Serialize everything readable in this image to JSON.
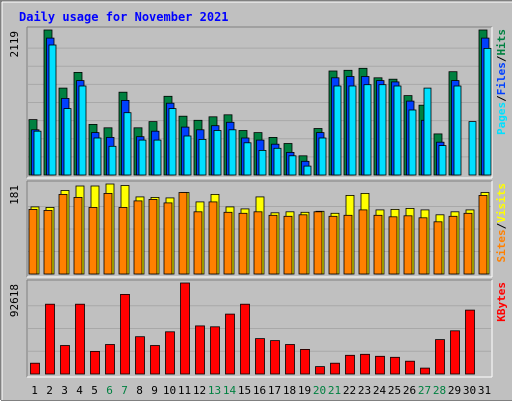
{
  "chart_data": {
    "type": "bar",
    "title": "Daily usage for November 2021",
    "colors": {
      "background": "#c0c0c0",
      "hits": "#008040",
      "files": "#0040ff",
      "pages": "#00e0ff",
      "visits": "#ffff00",
      "sites": "#ff8000",
      "kbytes": "#ff0000",
      "title": "#0000ff",
      "weekend_day": "#008040"
    },
    "categories": [
      "1",
      "2",
      "3",
      "4",
      "5",
      "6",
      "7",
      "8",
      "9",
      "10",
      "11",
      "12",
      "13",
      "14",
      "15",
      "16",
      "17",
      "18",
      "19",
      "20",
      "21",
      "22",
      "23",
      "24",
      "25",
      "26",
      "27",
      "28",
      "29",
      "30",
      "31"
    ],
    "weekend_days": [
      "6",
      "7",
      "13",
      "14",
      "20",
      "21",
      "27",
      "28"
    ],
    "panels": [
      {
        "name": "hits-files-pages",
        "max_label": "2119",
        "ymax": 2119,
        "legend": [
          {
            "text": "Pages",
            "color": "#00e0ff"
          },
          {
            "text": "/",
            "color": "#000000"
          },
          {
            "text": "Files",
            "color": "#0040ff"
          },
          {
            "text": "/",
            "color": "#000000"
          },
          {
            "text": "Hits",
            "color": "#008040"
          }
        ],
        "series": [
          {
            "name": "Hits",
            "color": "#008040",
            "values": [
              810,
              2119,
              1270,
              1500,
              740,
              690,
              1210,
              690,
              780,
              1150,
              860,
              800,
              850,
              880,
              650,
              620,
              550,
              460,
              280,
              680,
              1520,
              1530,
              1560,
              1420,
              1400,
              1160,
              1020,
              600,
              1510,
              0,
              2119
            ]
          },
          {
            "name": "Files",
            "color": "#0040ff",
            "values": [
              660,
              2000,
              1120,
              1380,
              620,
              550,
              1090,
              560,
              640,
              1050,
              700,
              660,
              720,
              770,
              540,
              510,
              450,
              330,
              200,
              620,
              1420,
              1440,
              1440,
              1380,
              1360,
              1080,
              800,
              480,
              1380,
              0,
              2000
            ]
          },
          {
            "name": "Pages",
            "color": "#00e0ff",
            "values": [
              640,
              1900,
              970,
              1300,
              540,
              420,
              910,
              510,
              510,
              970,
              570,
              520,
              650,
              660,
              470,
              360,
              390,
              280,
              130,
              540,
              1300,
              1300,
              1320,
              1320,
              1300,
              950,
              1270,
              430,
              1300,
              780,
              1850
            ]
          }
        ]
      },
      {
        "name": "visits-sites",
        "max_label": "181",
        "ymax": 181,
        "legend": [
          {
            "text": "Sites",
            "color": "#ff8000"
          },
          {
            "text": "/",
            "color": "#000000"
          },
          {
            "text": "Visits",
            "color": "#ffff00"
          }
        ],
        "series": [
          {
            "name": "Visits",
            "color": "#ffff00",
            "values": [
              135,
              134,
              168,
              177,
              177,
              181,
              178,
              155,
              154,
              153,
              164,
              145,
              160,
              135,
              131,
              155,
              123,
              125,
              124,
              126,
              122,
              158,
              162,
              129,
              130,
              132,
              129,
              119,
              125,
              129,
              164
            ]
          },
          {
            "name": "Sites",
            "color": "#ff8000",
            "values": [
              130,
              128,
              160,
              154,
              134,
              162,
              134,
              147,
              150,
              143,
              164,
              125,
              145,
              124,
              122,
              125,
              118,
              116,
              119,
              125,
              116,
              118,
              129,
              118,
              115,
              117,
              113,
              105,
              116,
              122,
              158
            ]
          }
        ]
      },
      {
        "name": "kbytes",
        "max_label": "92618",
        "ymax": 92618,
        "legend": [
          {
            "text": "KBytes",
            "color": "#ff0000"
          }
        ],
        "series": [
          {
            "name": "KBytes",
            "color": "#ff0000",
            "values": [
              11000,
              71000,
              29000,
              71000,
              23000,
              30000,
              81000,
              38000,
              29000,
              43000,
              92618,
              49000,
              48000,
              61000,
              71000,
              36000,
              34000,
              30000,
              25000,
              7500,
              11000,
              19000,
              20000,
              18000,
              17000,
              13000,
              6000,
              35000,
              44000,
              65000,
              0
            ]
          }
        ]
      }
    ]
  }
}
